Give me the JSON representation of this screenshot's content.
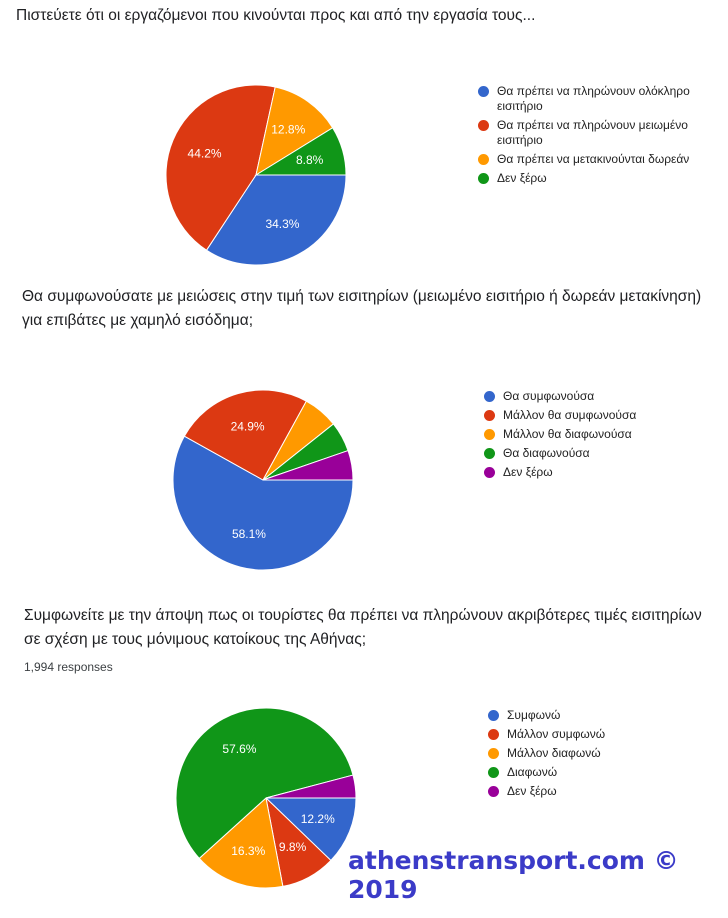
{
  "colors": [
    "#3366cc",
    "#dc3912",
    "#ff9900",
    "#109618",
    "#990099"
  ],
  "chart_data": [
    {
      "type": "pie",
      "title": "Πιστεύετε ότι οι εργαζόμενοι που κινούνται προς και από την εργασία τους...",
      "labels": [
        "Θα πρέπει να πληρώνουν ολόκληρο εισιτήριο",
        "Θα πρέπει να πληρώνουν μειωμένο εισιτήριο",
        "Θα πρέπει να μετακινούνται δωρεάν",
        "Δεν ξέρω"
      ],
      "values": [
        34.3,
        44.2,
        12.8,
        8.8
      ],
      "legend": "right"
    },
    {
      "type": "pie",
      "title": "Θα συμφωνούσατε με μειώσεις στην τιμή των εισιτηρίων (μειωμένο εισιτήριο ή δωρεάν μετακίνηση) για επιβάτες με χαμηλό εισόδημα;",
      "labels": [
        "Θα συμφωνούσα",
        "Μάλλον θα συμφωνούσα",
        "Μάλλον θα διαφωνούσα",
        "Θα διαφωνούσα",
        "Δεν ξέρω"
      ],
      "values": [
        58.1,
        24.9,
        6.3,
        5.4,
        5.3
      ],
      "legend": "right"
    },
    {
      "type": "pie",
      "title": "Συμφωνείτε με την άποψη πως οι τουρίστες θα πρέπει να πληρώνουν ακριβότερες τιμές εισιτηρίων σε σχέση με τους μόνιμους κατοίκους της Αθήνας;",
      "responses": "1,994 responses",
      "labels": [
        "Συμφωνώ",
        "Μάλλον συμφωνώ",
        "Μάλλον διαφωνώ",
        "Διαφωνώ",
        "Δεν ξέρω"
      ],
      "values": [
        12.2,
        9.8,
        16.3,
        57.6,
        4.1
      ],
      "legend": "right"
    }
  ],
  "watermark": "athenstransport.com © 2019"
}
